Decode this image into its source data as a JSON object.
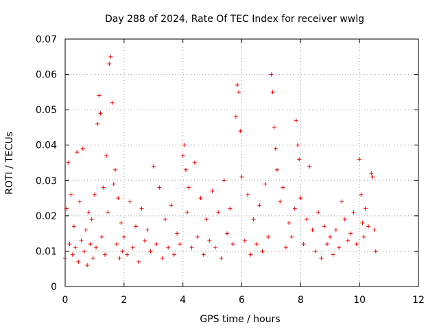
{
  "chart_data": {
    "type": "scatter",
    "title": "Day 288 of 2024, Rate Of TEC Index for receiver wwlg",
    "xlabel": "GPS time / hours",
    "ylabel": "ROTI / TECUs",
    "xlim": [
      0,
      12
    ],
    "ylim": [
      0,
      0.07
    ],
    "xticks": [
      0,
      2,
      4,
      6,
      8,
      10,
      12
    ],
    "yticks": [
      0,
      0.01,
      0.02,
      0.03,
      0.04,
      0.05,
      0.06,
      0.07
    ],
    "xtick_labels": [
      "0",
      "2",
      "4",
      "6",
      "8",
      "10",
      "12"
    ],
    "ytick_labels": [
      "0",
      "0.01",
      "0.02",
      "0.03",
      "0.04",
      "0.05",
      "0.06",
      "0.07"
    ],
    "grid": true,
    "marker": "+",
    "color": "#ee0000",
    "series": [
      {
        "name": "ROTI",
        "x": [
          0.0,
          0.05,
          0.1,
          0.15,
          0.2,
          0.25,
          0.3,
          0.35,
          0.4,
          0.45,
          0.5,
          0.55,
          0.6,
          0.65,
          0.7,
          0.75,
          0.8,
          0.85,
          0.9,
          0.95,
          1.0,
          1.05,
          1.1,
          1.15,
          1.2,
          1.25,
          1.3,
          1.35,
          1.4,
          1.45,
          1.5,
          1.55,
          1.6,
          1.65,
          1.7,
          1.75,
          1.8,
          1.85,
          1.9,
          1.95,
          2.0,
          2.1,
          2.2,
          2.3,
          2.4,
          2.5,
          2.6,
          2.7,
          2.8,
          2.9,
          3.0,
          3.1,
          3.2,
          3.3,
          3.4,
          3.5,
          3.6,
          3.7,
          3.8,
          3.9,
          4.0,
          4.05,
          4.1,
          4.15,
          4.2,
          4.3,
          4.4,
          4.5,
          4.6,
          4.7,
          4.8,
          4.9,
          5.0,
          5.1,
          5.2,
          5.3,
          5.4,
          5.5,
          5.6,
          5.7,
          5.8,
          5.85,
          5.9,
          5.95,
          6.0,
          6.1,
          6.2,
          6.3,
          6.4,
          6.5,
          6.6,
          6.7,
          6.8,
          6.9,
          7.0,
          7.05,
          7.1,
          7.15,
          7.2,
          7.3,
          7.4,
          7.5,
          7.6,
          7.7,
          7.8,
          7.85,
          7.9,
          7.95,
          8.0,
          8.1,
          8.2,
          8.3,
          8.4,
          8.5,
          8.6,
          8.7,
          8.8,
          8.9,
          9.0,
          9.1,
          9.2,
          9.3,
          9.4,
          9.5,
          9.6,
          9.7,
          9.8,
          9.9,
          10.0,
          10.05,
          10.1,
          10.15,
          10.2,
          10.3,
          10.4,
          10.45,
          10.5,
          10.55
        ],
        "y": [
          0.008,
          0.022,
          0.035,
          0.012,
          0.026,
          0.009,
          0.017,
          0.011,
          0.038,
          0.007,
          0.024,
          0.013,
          0.039,
          0.01,
          0.016,
          0.006,
          0.021,
          0.012,
          0.019,
          0.008,
          0.026,
          0.011,
          0.046,
          0.054,
          0.049,
          0.014,
          0.028,
          0.009,
          0.037,
          0.021,
          0.063,
          0.065,
          0.052,
          0.029,
          0.033,
          0.012,
          0.025,
          0.008,
          0.018,
          0.01,
          0.014,
          0.009,
          0.024,
          0.011,
          0.017,
          0.007,
          0.022,
          0.013,
          0.016,
          0.01,
          0.034,
          0.012,
          0.028,
          0.008,
          0.019,
          0.011,
          0.023,
          0.009,
          0.015,
          0.012,
          0.037,
          0.04,
          0.033,
          0.021,
          0.028,
          0.011,
          0.035,
          0.014,
          0.025,
          0.009,
          0.019,
          0.013,
          0.027,
          0.011,
          0.021,
          0.008,
          0.03,
          0.015,
          0.022,
          0.012,
          0.048,
          0.057,
          0.055,
          0.044,
          0.031,
          0.013,
          0.026,
          0.009,
          0.019,
          0.012,
          0.023,
          0.01,
          0.029,
          0.014,
          0.06,
          0.055,
          0.045,
          0.039,
          0.033,
          0.024,
          0.028,
          0.011,
          0.018,
          0.014,
          0.022,
          0.047,
          0.04,
          0.036,
          0.025,
          0.012,
          0.019,
          0.034,
          0.016,
          0.01,
          0.021,
          0.008,
          0.017,
          0.012,
          0.014,
          0.009,
          0.016,
          0.011,
          0.024,
          0.019,
          0.013,
          0.015,
          0.021,
          0.012,
          0.036,
          0.026,
          0.018,
          0.014,
          0.022,
          0.017,
          0.032,
          0.031,
          0.016,
          0.01
        ]
      }
    ]
  }
}
